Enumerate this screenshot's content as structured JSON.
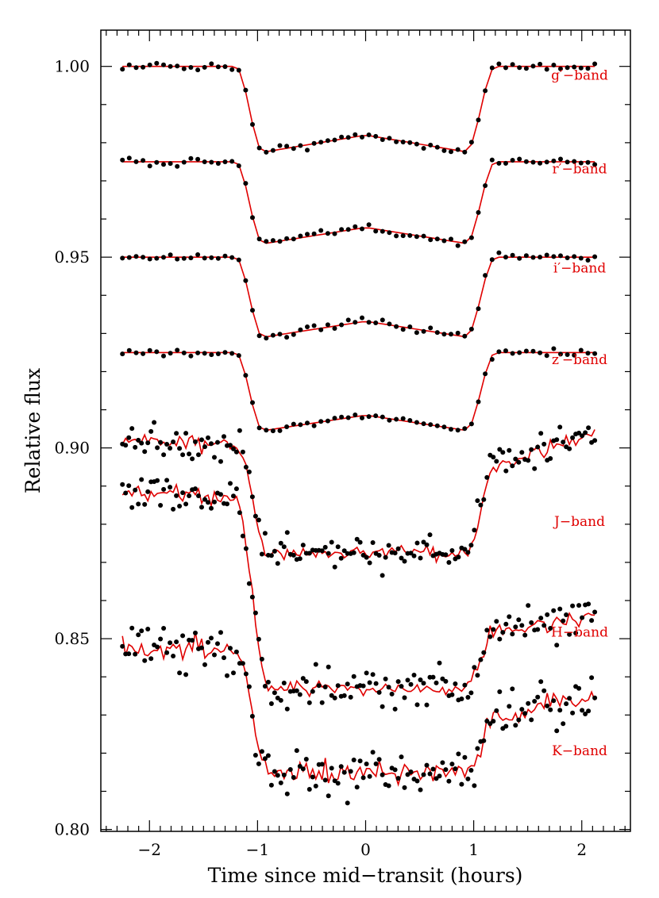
{
  "colors": {
    "axis": "#000000",
    "points": "#000000",
    "model": "#e00000",
    "band_label": "#e00000"
  },
  "chart_data": {
    "type": "scatter",
    "title": "",
    "xlabel": "Time since mid−transit (hours)",
    "ylabel": "Relative flux",
    "xlim": [
      -2.45,
      2.45
    ],
    "ylim": [
      0.7995,
      1.0095
    ],
    "x_ticks": [
      -2,
      -1,
      0,
      1,
      2
    ],
    "x_tick_labels": [
      "−2",
      "−1",
      "0",
      "1",
      "2"
    ],
    "x_minor_step": 0.1,
    "y_ticks": [
      0.8,
      0.85,
      0.9,
      0.95,
      1.0
    ],
    "y_tick_labels": [
      "0.80",
      "0.85",
      "0.90",
      "0.95",
      "1.00"
    ],
    "y_minor_step": 0.01,
    "grid": false,
    "legend": "none",
    "model_style": "red line",
    "points_style": "black dots",
    "series": [
      {
        "name": "g′−band",
        "label_at": [
          1.98,
          0.9965
        ],
        "baseline": 1.0,
        "depth": 0.0225,
        "t_start": -2.25,
        "t_end": 2.12,
        "ingress_start": -1.2,
        "ingress_end": -0.95,
        "egress_start": 0.93,
        "egress_end": 1.2,
        "scatter": 0.0005
      },
      {
        "name": "r′−band",
        "label_at": [
          1.98,
          0.972
        ],
        "baseline": 0.975,
        "depth": 0.0215,
        "t_start": -2.25,
        "t_end": 2.12,
        "ingress_start": -1.2,
        "ingress_end": -0.95,
        "egress_start": 0.93,
        "egress_end": 1.2,
        "scatter": 0.0005
      },
      {
        "name": "i′−band",
        "label_at": [
          1.98,
          0.946
        ],
        "baseline": 0.95,
        "depth": 0.021,
        "t_start": -2.25,
        "t_end": 2.12,
        "ingress_start": -1.2,
        "ingress_end": -0.95,
        "egress_start": 0.93,
        "egress_end": 1.2,
        "scatter": 0.0005
      },
      {
        "name": "z′−band",
        "label_at": [
          1.98,
          0.922
        ],
        "baseline": 0.925,
        "depth": 0.0205,
        "t_start": -2.25,
        "t_end": 2.12,
        "ingress_start": -1.2,
        "ingress_end": -0.95,
        "egress_start": 0.93,
        "egress_end": 1.2,
        "scatter": 0.0005
      },
      {
        "name": "J−band",
        "label_at": [
          1.98,
          0.8795
        ],
        "baseline_start": 0.901,
        "baseline_end": 0.904,
        "egress_top": 0.895,
        "floor": 0.8725,
        "t_start": -2.25,
        "t_end": 2.12,
        "ingress_start": -1.2,
        "ingress_end": -0.9,
        "egress_start": 0.93,
        "egress_end": 1.2,
        "scatter": 0.0022
      },
      {
        "name": "H−band",
        "label_at": [
          1.98,
          0.8505
        ],
        "baseline_start": 0.887,
        "baseline_end": 0.856,
        "egress_top": 0.852,
        "floor": 0.837,
        "t_start": -2.25,
        "t_end": 2.12,
        "ingress_start": -1.2,
        "ingress_end": -0.9,
        "egress_start": 0.93,
        "egress_end": 1.2,
        "scatter": 0.0025
      },
      {
        "name": "K−band",
        "label_at": [
          1.98,
          0.8195
        ],
        "baseline_start": 0.847,
        "baseline_end": 0.836,
        "egress_top": 0.829,
        "floor": 0.815,
        "t_start": -2.25,
        "t_end": 2.12,
        "ingress_start": -1.2,
        "ingress_end": -0.9,
        "egress_start": 0.93,
        "egress_end": 1.2,
        "scatter": 0.0035
      }
    ]
  }
}
